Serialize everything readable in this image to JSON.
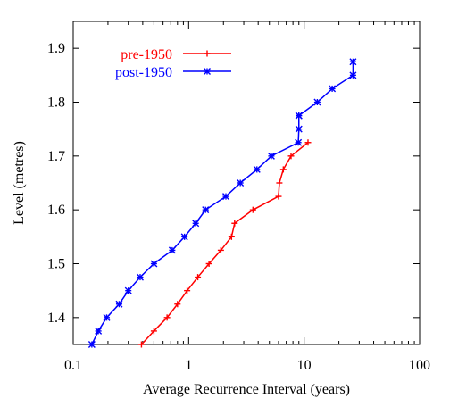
{
  "chart_data": {
    "type": "line",
    "title": "",
    "xlabel": "Average Recurrence Interval (years)",
    "ylabel": "Level (metres)",
    "x_scale": "log",
    "xlim": [
      0.1,
      100
    ],
    "ylim": [
      1.35,
      1.95
    ],
    "x_ticks": [
      0.1,
      1,
      10,
      100
    ],
    "x_tick_labels": [
      "0.1",
      "1",
      "10",
      "100"
    ],
    "y_ticks": [
      1.4,
      1.5,
      1.6,
      1.7,
      1.8,
      1.9
    ],
    "y_tick_labels": [
      "1.4",
      "1.5",
      "1.6",
      "1.7",
      "1.8",
      "1.9"
    ],
    "grid": false,
    "legend_position": "top-left",
    "series": [
      {
        "name": "pre-1950",
        "color": "#ff0000",
        "marker": "plus",
        "x": [
          0.39,
          0.5,
          0.65,
          0.8,
          0.97,
          1.2,
          1.5,
          1.9,
          2.35,
          2.5,
          3.6,
          6.0,
          6.1,
          6.6,
          7.7,
          10.8
        ],
        "y": [
          1.35,
          1.375,
          1.4,
          1.425,
          1.45,
          1.475,
          1.5,
          1.525,
          1.55,
          1.575,
          1.6,
          1.625,
          1.65,
          1.675,
          1.7,
          1.725
        ]
      },
      {
        "name": "post-1950",
        "color": "#0000ff",
        "marker": "star",
        "x": [
          0.145,
          0.165,
          0.195,
          0.25,
          0.3,
          0.38,
          0.5,
          0.72,
          0.92,
          1.15,
          1.4,
          2.1,
          2.8,
          3.9,
          5.2,
          8.9,
          9.0,
          9.0,
          9.0,
          13.0,
          17.5,
          26.5,
          26.5
        ],
        "y": [
          1.35,
          1.375,
          1.4,
          1.425,
          1.45,
          1.475,
          1.5,
          1.525,
          1.55,
          1.575,
          1.6,
          1.625,
          1.65,
          1.675,
          1.7,
          1.725,
          1.75,
          1.775,
          1.775,
          1.8,
          1.825,
          1.85,
          1.875
        ]
      }
    ]
  }
}
